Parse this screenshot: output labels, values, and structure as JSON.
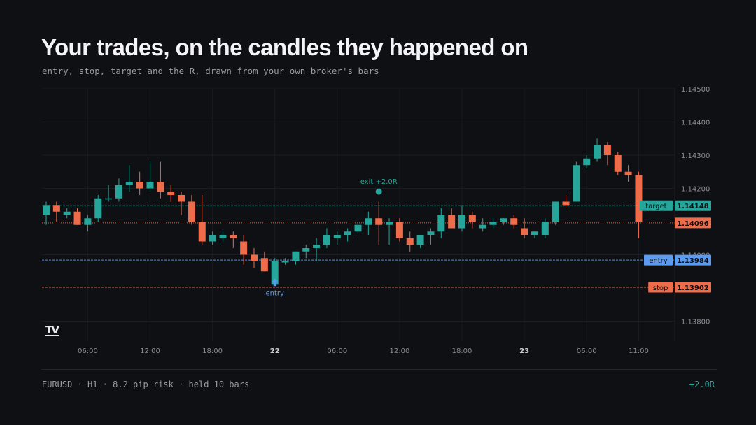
{
  "header": {
    "title": "Your trades, on the candles they happened on",
    "subtitle": "entry, stop, target and the R, drawn from your own broker's bars"
  },
  "footer": {
    "summary": "EURUSD · H1 · 8.2 pip risk · held 10 bars",
    "result": "+2.0R"
  },
  "logo_text": "TV",
  "colors": {
    "background": "#0f1014",
    "bull": "#26a69a",
    "bear": "#ef6c4b",
    "entry": "#5b9cf0",
    "grid": "#1a1c22",
    "axis_text": "#8c8e96",
    "exit_marker": "#26a69a"
  },
  "chart_data": {
    "type": "candlestick",
    "symbol": "EURUSD",
    "timeframe": "H1",
    "x_tick_labels": [
      "06:00",
      "12:00",
      "18:00",
      "22",
      "06:00",
      "12:00",
      "18:00",
      "23",
      "06:00",
      "11:00"
    ],
    "x_tick_bar_index": [
      4,
      10,
      16,
      22,
      28,
      34,
      40,
      46,
      52,
      57
    ],
    "y_ticks": [
      1.138,
      1.14,
      1.142,
      1.143,
      1.144,
      1.145
    ],
    "y_tick_labels": [
      "1.13800",
      "1.14000",
      "1.14200",
      "1.14300",
      "1.14400",
      "1.14500"
    ],
    "ylim": [
      1.1374,
      1.145
    ],
    "grid": true,
    "levels": [
      {
        "name": "target",
        "label": "target",
        "value": 1.14148,
        "value_label": "1.14148",
        "color": "#26a69a",
        "style": "dashed"
      },
      {
        "name": "entry",
        "label": "entry",
        "value": 1.13984,
        "value_label": "1.13984",
        "color": "#5b9cf0",
        "style": "dashed"
      },
      {
        "name": "stop",
        "label": "stop",
        "value": 1.13902,
        "value_label": "1.13902",
        "color": "#ef6c4b",
        "style": "dashed"
      },
      {
        "name": "last-price",
        "label": "",
        "value": 1.14096,
        "value_label": "1.14096",
        "color": "#ef6c4b",
        "style": "dotted"
      }
    ],
    "markers": [
      {
        "name": "entry",
        "text": "entry",
        "bar": 22,
        "price": 1.1395,
        "position": "below",
        "shape": "arrow-up",
        "color": "#5b9cf0"
      },
      {
        "name": "exit",
        "text": "exit +2.0R",
        "bar": 32,
        "price": 1.14165,
        "position": "above",
        "shape": "circle",
        "color": "#26a69a"
      }
    ],
    "candles": [
      {
        "o": 1.1412,
        "h": 1.1416,
        "l": 1.1409,
        "c": 1.1415
      },
      {
        "o": 1.1415,
        "h": 1.1416,
        "l": 1.141,
        "c": 1.1413
      },
      {
        "o": 1.1412,
        "h": 1.1414,
        "l": 1.1411,
        "c": 1.1413
      },
      {
        "o": 1.1413,
        "h": 1.1414,
        "l": 1.1409,
        "c": 1.1409
      },
      {
        "o": 1.1409,
        "h": 1.1412,
        "l": 1.1407,
        "c": 1.1411
      },
      {
        "o": 1.1411,
        "h": 1.1418,
        "l": 1.141,
        "c": 1.1417
      },
      {
        "o": 1.1417,
        "h": 1.1421,
        "l": 1.1416,
        "c": 1.1417
      },
      {
        "o": 1.1417,
        "h": 1.1423,
        "l": 1.1416,
        "c": 1.1421
      },
      {
        "o": 1.1421,
        "h": 1.1427,
        "l": 1.1419,
        "c": 1.1422
      },
      {
        "o": 1.1422,
        "h": 1.1425,
        "l": 1.1418,
        "c": 1.142
      },
      {
        "o": 1.142,
        "h": 1.1428,
        "l": 1.1419,
        "c": 1.1422
      },
      {
        "o": 1.1422,
        "h": 1.1428,
        "l": 1.1417,
        "c": 1.1419
      },
      {
        "o": 1.1419,
        "h": 1.1421,
        "l": 1.1416,
        "c": 1.1418
      },
      {
        "o": 1.1418,
        "h": 1.1419,
        "l": 1.1412,
        "c": 1.1416
      },
      {
        "o": 1.1416,
        "h": 1.1418,
        "l": 1.1409,
        "c": 1.141
      },
      {
        "o": 1.141,
        "h": 1.1418,
        "l": 1.1403,
        "c": 1.1404
      },
      {
        "o": 1.1404,
        "h": 1.1407,
        "l": 1.1403,
        "c": 1.1406
      },
      {
        "o": 1.1405,
        "h": 1.1407,
        "l": 1.1404,
        "c": 1.1406
      },
      {
        "o": 1.1406,
        "h": 1.1407,
        "l": 1.1402,
        "c": 1.1405
      },
      {
        "o": 1.1404,
        "h": 1.1406,
        "l": 1.1397,
        "c": 1.14
      },
      {
        "o": 1.14,
        "h": 1.1402,
        "l": 1.1396,
        "c": 1.1398
      },
      {
        "o": 1.1399,
        "h": 1.1401,
        "l": 1.1395,
        "c": 1.1395
      },
      {
        "o": 1.1391,
        "h": 1.1399,
        "l": 1.1391,
        "c": 1.1398
      },
      {
        "o": 1.1398,
        "h": 1.1399,
        "l": 1.1397,
        "c": 1.1398
      },
      {
        "o": 1.1398,
        "h": 1.1401,
        "l": 1.1397,
        "c": 1.1401
      },
      {
        "o": 1.1401,
        "h": 1.1403,
        "l": 1.1399,
        "c": 1.1402
      },
      {
        "o": 1.1402,
        "h": 1.1405,
        "l": 1.1398,
        "c": 1.1403
      },
      {
        "o": 1.1403,
        "h": 1.1408,
        "l": 1.1402,
        "c": 1.1406
      },
      {
        "o": 1.1405,
        "h": 1.1407,
        "l": 1.1403,
        "c": 1.1406
      },
      {
        "o": 1.1406,
        "h": 1.1408,
        "l": 1.1404,
        "c": 1.1407
      },
      {
        "o": 1.1407,
        "h": 1.141,
        "l": 1.1405,
        "c": 1.1409
      },
      {
        "o": 1.1409,
        "h": 1.1413,
        "l": 1.1406,
        "c": 1.1411
      },
      {
        "o": 1.1411,
        "h": 1.1416,
        "l": 1.1403,
        "c": 1.1409
      },
      {
        "o": 1.1409,
        "h": 1.1411,
        "l": 1.1403,
        "c": 1.141
      },
      {
        "o": 1.141,
        "h": 1.1411,
        "l": 1.1404,
        "c": 1.1405
      },
      {
        "o": 1.1405,
        "h": 1.1407,
        "l": 1.1401,
        "c": 1.1403
      },
      {
        "o": 1.1403,
        "h": 1.1406,
        "l": 1.1402,
        "c": 1.1406
      },
      {
        "o": 1.1406,
        "h": 1.1408,
        "l": 1.1403,
        "c": 1.1407
      },
      {
        "o": 1.1407,
        "h": 1.1414,
        "l": 1.1405,
        "c": 1.1412
      },
      {
        "o": 1.1412,
        "h": 1.1414,
        "l": 1.1408,
        "c": 1.1408
      },
      {
        "o": 1.1408,
        "h": 1.1415,
        "l": 1.1407,
        "c": 1.1412
      },
      {
        "o": 1.1412,
        "h": 1.1413,
        "l": 1.1408,
        "c": 1.141
      },
      {
        "o": 1.1408,
        "h": 1.1411,
        "l": 1.1407,
        "c": 1.1409
      },
      {
        "o": 1.1409,
        "h": 1.1411,
        "l": 1.1408,
        "c": 1.141
      },
      {
        "o": 1.141,
        "h": 1.1411,
        "l": 1.1409,
        "c": 1.1411
      },
      {
        "o": 1.1411,
        "h": 1.1412,
        "l": 1.1408,
        "c": 1.1409
      },
      {
        "o": 1.1408,
        "h": 1.1411,
        "l": 1.1405,
        "c": 1.1406
      },
      {
        "o": 1.1406,
        "h": 1.1407,
        "l": 1.1405,
        "c": 1.1407
      },
      {
        "o": 1.1406,
        "h": 1.1411,
        "l": 1.1405,
        "c": 1.141
      },
      {
        "o": 1.141,
        "h": 1.1416,
        "l": 1.1409,
        "c": 1.1416
      },
      {
        "o": 1.1416,
        "h": 1.1418,
        "l": 1.1414,
        "c": 1.1415
      },
      {
        "o": 1.1416,
        "h": 1.1428,
        "l": 1.1416,
        "c": 1.1427
      },
      {
        "o": 1.1427,
        "h": 1.143,
        "l": 1.1426,
        "c": 1.1429
      },
      {
        "o": 1.1429,
        "h": 1.1435,
        "l": 1.1428,
        "c": 1.1433
      },
      {
        "o": 1.1433,
        "h": 1.1434,
        "l": 1.1427,
        "c": 1.143
      },
      {
        "o": 1.143,
        "h": 1.1431,
        "l": 1.1424,
        "c": 1.1425
      },
      {
        "o": 1.1425,
        "h": 1.1427,
        "l": 1.1422,
        "c": 1.1424
      },
      {
        "o": 1.1424,
        "h": 1.1425,
        "l": 1.1405,
        "c": 1.141
      }
    ]
  }
}
